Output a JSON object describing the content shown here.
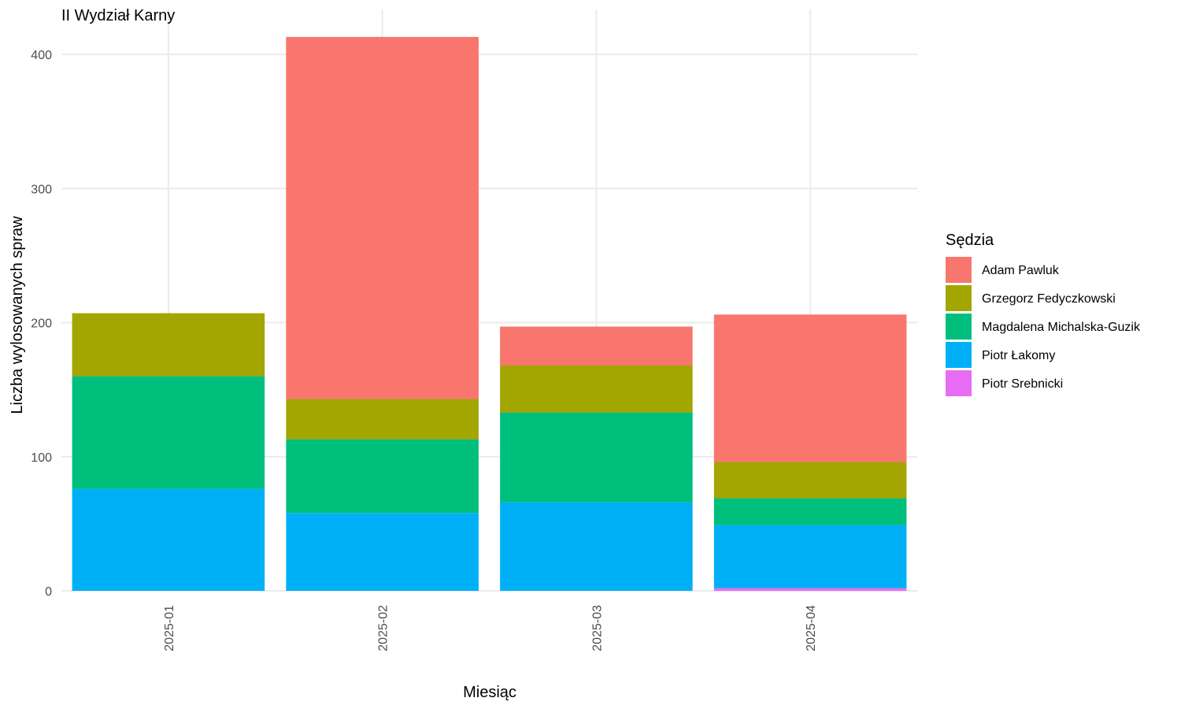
{
  "chart_data": {
    "type": "bar",
    "stacked": true,
    "title": "II Wydział Karny",
    "xlabel": "Miesiąc",
    "ylabel": "Liczba wylosowanych spraw",
    "categories": [
      "2025-01",
      "2025-02",
      "2025-03",
      "2025-04"
    ],
    "ylim": [
      0,
      430
    ],
    "yticks": [
      0,
      100,
      200,
      300,
      400
    ],
    "grid": true,
    "legend": {
      "title": "Sędzia",
      "position": "right"
    },
    "series": [
      {
        "name": "Piotr Srebnicki",
        "color": "#E76BF3",
        "values": [
          0,
          0,
          0,
          2
        ]
      },
      {
        "name": "Piotr Łakomy",
        "color": "#00B0F6",
        "values": [
          76,
          58,
          66,
          47
        ]
      },
      {
        "name": "Magdalena Michalska-Guzik",
        "color": "#00BF7D",
        "values": [
          84,
          55,
          67,
          20
        ]
      },
      {
        "name": "Grzegorz Fedyczkowski",
        "color": "#A3A500",
        "values": [
          47,
          30,
          35,
          27
        ]
      },
      {
        "name": "Adam Pawluk",
        "color": "#F8766D",
        "values": [
          0,
          270,
          29,
          110
        ]
      }
    ],
    "legend_order": [
      "Adam Pawluk",
      "Grzegorz Fedyczkowski",
      "Magdalena Michalska-Guzik",
      "Piotr Łakomy",
      "Piotr Srebnicki"
    ]
  }
}
